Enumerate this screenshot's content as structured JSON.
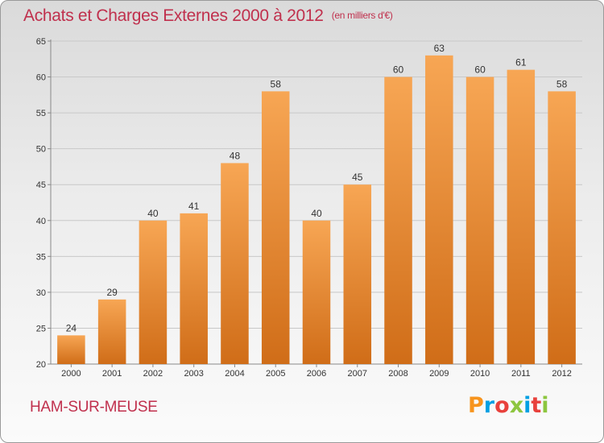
{
  "header": {
    "title": "Achats et Charges Externes 2000 à 2012",
    "unit": "(en milliers d'€)"
  },
  "footer": {
    "commune": "HAM-SUR-MEUSE",
    "logo_text": "Proxiti",
    "logo_colors": [
      "#f7941d",
      "#00a0e3",
      "#e8413c",
      "#8dc63f",
      "#00a0e3",
      "#e8413c",
      "#8dc63f"
    ]
  },
  "colors": {
    "bar_top": "#f7a654",
    "bar_bottom": "#d06d18",
    "grid": "#c8c8c8",
    "title": "#c0304d"
  },
  "chart_data": {
    "type": "bar",
    "categories": [
      "2000",
      "2001",
      "2002",
      "2003",
      "2004",
      "2005",
      "2006",
      "2007",
      "2008",
      "2009",
      "2010",
      "2011",
      "2012"
    ],
    "values": [
      24,
      29,
      40,
      41,
      48,
      58,
      40,
      45,
      60,
      63,
      60,
      61,
      58
    ],
    "ylim": [
      20,
      65
    ],
    "yticks": [
      20,
      25,
      30,
      35,
      40,
      45,
      50,
      55,
      60,
      65
    ],
    "grid": true,
    "data_labels": true
  }
}
